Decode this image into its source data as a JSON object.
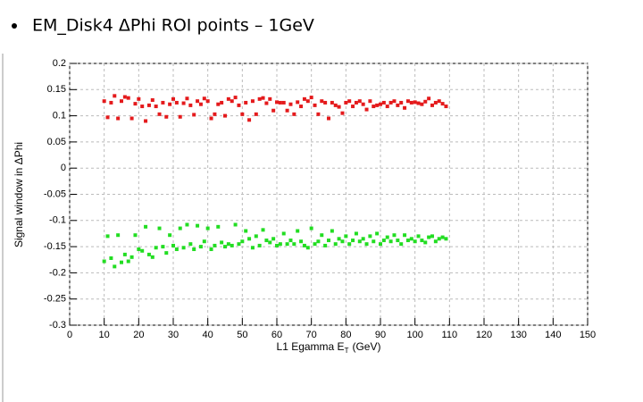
{
  "chart_data": {
    "type": "scatter",
    "title": "EM_Disk4 ΔPhi ROI points – 1GeV",
    "ylabel": "Signal window in ΔPhi",
    "xlabel": {
      "main": "L1 Egamma E",
      "sub": "T",
      "unit": "(GeV)"
    },
    "x": [
      10,
      11,
      12,
      13,
      14,
      15,
      16,
      17,
      18,
      19,
      20,
      21,
      22,
      23,
      24,
      25,
      26,
      27,
      28,
      29,
      30,
      31,
      32,
      33,
      34,
      35,
      36,
      37,
      38,
      39,
      40,
      41,
      42,
      43,
      44,
      45,
      46,
      47,
      48,
      49,
      50,
      51,
      52,
      53,
      54,
      55,
      56,
      57,
      58,
      59,
      60,
      61,
      62,
      63,
      64,
      65,
      66,
      67,
      68,
      69,
      70,
      71,
      72,
      73,
      74,
      75,
      76,
      77,
      78,
      79,
      80,
      81,
      82,
      83,
      84,
      85,
      86,
      87,
      88,
      89,
      90,
      91,
      92,
      93,
      94,
      95,
      96,
      97,
      98,
      99,
      100,
      101,
      102,
      103,
      104,
      105,
      106,
      107,
      108,
      109
    ],
    "series": [
      {
        "color": "#e41a1c",
        "values": [
          0.128,
          0.097,
          0.125,
          0.138,
          0.095,
          0.128,
          0.136,
          0.134,
          0.095,
          0.123,
          0.132,
          0.118,
          0.09,
          0.12,
          0.13,
          0.118,
          0.103,
          0.125,
          0.098,
          0.122,
          0.132,
          0.125,
          0.098,
          0.124,
          0.133,
          0.12,
          0.102,
          0.128,
          0.122,
          0.133,
          0.128,
          0.095,
          0.103,
          0.122,
          0.125,
          0.1,
          0.132,
          0.128,
          0.135,
          0.12,
          0.103,
          0.125,
          0.092,
          0.128,
          0.103,
          0.132,
          0.134,
          0.124,
          0.132,
          0.11,
          0.126,
          0.125,
          0.125,
          0.11,
          0.122,
          0.103,
          0.126,
          0.118,
          0.132,
          0.128,
          0.135,
          0.12,
          0.103,
          0.128,
          0.125,
          0.095,
          0.125,
          0.12,
          0.117,
          0.105,
          0.125,
          0.128,
          0.118,
          0.125,
          0.128,
          0.122,
          0.112,
          0.128,
          0.118,
          0.12,
          0.122,
          0.125,
          0.118,
          0.125,
          0.128,
          0.12,
          0.125,
          0.115,
          0.128,
          0.125,
          0.126,
          0.124,
          0.122,
          0.127,
          0.133,
          0.12,
          0.125,
          0.128,
          0.123,
          0.118
        ]
      },
      {
        "color": "#22dd22",
        "values": [
          -0.178,
          -0.13,
          -0.172,
          -0.188,
          -0.128,
          -0.18,
          -0.165,
          -0.178,
          -0.17,
          -0.128,
          -0.155,
          -0.158,
          -0.112,
          -0.165,
          -0.17,
          -0.152,
          -0.115,
          -0.15,
          -0.162,
          -0.128,
          -0.148,
          -0.155,
          -0.115,
          -0.152,
          -0.108,
          -0.145,
          -0.155,
          -0.11,
          -0.15,
          -0.14,
          -0.115,
          -0.155,
          -0.148,
          -0.112,
          -0.142,
          -0.15,
          -0.145,
          -0.148,
          -0.108,
          -0.145,
          -0.14,
          -0.12,
          -0.135,
          -0.152,
          -0.13,
          -0.148,
          -0.118,
          -0.138,
          -0.142,
          -0.135,
          -0.148,
          -0.145,
          -0.125,
          -0.145,
          -0.138,
          -0.145,
          -0.12,
          -0.14,
          -0.148,
          -0.152,
          -0.115,
          -0.145,
          -0.14,
          -0.128,
          -0.148,
          -0.138,
          -0.12,
          -0.145,
          -0.135,
          -0.14,
          -0.13,
          -0.145,
          -0.138,
          -0.125,
          -0.14,
          -0.135,
          -0.145,
          -0.13,
          -0.14,
          -0.125,
          -0.145,
          -0.138,
          -0.132,
          -0.14,
          -0.128,
          -0.138,
          -0.145,
          -0.128,
          -0.138,
          -0.135,
          -0.14,
          -0.13,
          -0.138,
          -0.142,
          -0.132,
          -0.13,
          -0.14,
          -0.135,
          -0.132,
          -0.135
        ]
      }
    ],
    "xlim": [
      0,
      150
    ],
    "xticks": [
      0,
      10,
      20,
      30,
      40,
      50,
      60,
      70,
      80,
      90,
      100,
      110,
      120,
      130,
      140,
      150
    ],
    "ylim": [
      -0.3,
      0.2
    ],
    "yticks": [
      -0.3,
      -0.25,
      -0.2,
      -0.15,
      -0.1,
      -0.05,
      0,
      0.05,
      0.1,
      0.15,
      0.2
    ],
    "grid": true
  }
}
